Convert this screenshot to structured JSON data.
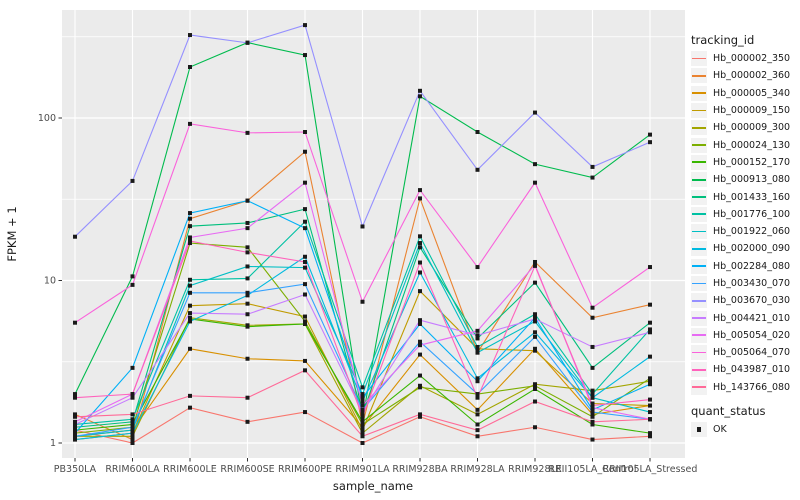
{
  "figure": {
    "background": "#FFFFFF",
    "panel_background": "#EBEBEB",
    "grid_color": "#FFFFFF",
    "point_color": "#1A1A1A",
    "axis_text_color": "#4D4D4D",
    "axis_title_color": "#1A1A1A"
  },
  "chart_data": {
    "type": "line",
    "title": "",
    "xlabel": "sample_name",
    "ylabel": "FPKM + 1",
    "y_scale": "log10",
    "y_ticks": [
      1,
      10,
      100
    ],
    "ylim": [
      0.82,
      470
    ],
    "grid": true,
    "legend_position": "right",
    "point_shape": "filled-square-black",
    "categories": [
      "PB350LA",
      "RRIM600LA",
      "RRIM600LE",
      "RRIM600SE",
      "RRIM600PE",
      "RRIM901LA",
      "RRIM928BA",
      "RRIM928LA",
      "RRIM928LE",
      "RRII105LA_Control",
      "RRII105LA_Stressed"
    ],
    "series": [
      {
        "name": "Hb_000002_350",
        "color": "#F8766D",
        "values": [
          1.2,
          1.0,
          1.65,
          1.35,
          1.55,
          1.0,
          1.45,
          1.1,
          1.25,
          1.05,
          1.1
        ]
      },
      {
        "name": "Hb_000002_360",
        "color": "#EA8331",
        "values": [
          1.5,
          1.05,
          24,
          31,
          62,
          1.3,
          32,
          3.6,
          13,
          5.9,
          7.1
        ]
      },
      {
        "name": "Hb_000005_340",
        "color": "#D89000",
        "values": [
          1.1,
          1.2,
          3.8,
          3.3,
          3.2,
          1.25,
          3.5,
          1.6,
          3.8,
          1.5,
          1.7
        ]
      },
      {
        "name": "Hb_000009_150",
        "color": "#C09B00",
        "values": [
          1.05,
          1.15,
          7.0,
          7.2,
          6.0,
          1.2,
          8.6,
          3.8,
          3.7,
          1.75,
          1.7
        ]
      },
      {
        "name": "Hb_000009_300",
        "color": "#A3A500",
        "values": [
          1.1,
          1.1,
          5.9,
          5.3,
          5.4,
          1.15,
          2.25,
          1.5,
          2.3,
          2.1,
          2.4
        ]
      },
      {
        "name": "Hb_000024_130",
        "color": "#7CAE00",
        "values": [
          1.15,
          1.25,
          17,
          16,
          5.6,
          1.3,
          2.2,
          2.0,
          2.25,
          1.45,
          2.5
        ]
      },
      {
        "name": "Hb_000152_170",
        "color": "#39B600",
        "values": [
          1.2,
          1.3,
          5.8,
          5.2,
          5.4,
          1.35,
          2.6,
          1.3,
          2.15,
          1.3,
          1.15
        ]
      },
      {
        "name": "Hb_000913_080",
        "color": "#00BB4E",
        "values": [
          2.0,
          10.6,
          206,
          291,
          244,
          1.4,
          136,
          82,
          52,
          43,
          79
        ]
      },
      {
        "name": "Hb_001433_160",
        "color": "#00BF7D",
        "values": [
          1.25,
          1.35,
          21.6,
          22.6,
          27.5,
          1.5,
          16,
          4.4,
          9.7,
          2.9,
          5.5
        ]
      },
      {
        "name": "Hb_001776_100",
        "color": "#00C1A3",
        "values": [
          1.3,
          1.4,
          10.1,
          10.3,
          23,
          2.2,
          18.7,
          3.9,
          6.2,
          2.0,
          5.0
        ]
      },
      {
        "name": "Hb_001922_060",
        "color": "#00BFC4",
        "values": [
          1.1,
          1.2,
          9.3,
          12.2,
          12,
          2.0,
          17,
          3.6,
          5.6,
          1.9,
          1.55
        ]
      },
      {
        "name": "Hb_002000_090",
        "color": "#00BAE0",
        "values": [
          1.05,
          1.15,
          5.6,
          8.1,
          14,
          1.8,
          11.2,
          2.5,
          4.8,
          1.9,
          3.4
        ]
      },
      {
        "name": "Hb_002284_080",
        "color": "#00B0F6",
        "values": [
          1.15,
          2.9,
          26,
          31,
          21,
          1.9,
          5.4,
          2.4,
          5.9,
          1.6,
          2.3
        ]
      },
      {
        "name": "Hb_003430_070",
        "color": "#35A2FF",
        "values": [
          1.1,
          1.25,
          8.4,
          8.4,
          9.5,
          1.6,
          4.2,
          2.0,
          4.5,
          1.55,
          1.4
        ]
      },
      {
        "name": "Hb_003670_030",
        "color": "#9590FF",
        "values": [
          18.6,
          41,
          324,
          290,
          373,
          21.5,
          147,
          48,
          108,
          50,
          71
        ]
      },
      {
        "name": "Hb_004421_010",
        "color": "#C77CFF",
        "values": [
          1.3,
          1.9,
          6.3,
          6.2,
          8.2,
          1.55,
          5.7,
          4.6,
          5.8,
          3.9,
          4.8
        ]
      },
      {
        "name": "Hb_005054_020",
        "color": "#E76BF3",
        "values": [
          1.35,
          2.0,
          18.4,
          21,
          40,
          1.7,
          4.0,
          4.9,
          12.5,
          1.65,
          1.4
        ]
      },
      {
        "name": "Hb_005064_070",
        "color": "#FA62DB",
        "values": [
          5.5,
          9.4,
          92,
          81,
          82,
          7.4,
          36,
          12.1,
          40,
          6.8,
          12.1
        ]
      },
      {
        "name": "Hb_043987_010",
        "color": "#FF62BC",
        "values": [
          1.9,
          2.0,
          17.5,
          14.9,
          13,
          1.45,
          12.9,
          1.9,
          12.3,
          1.7,
          1.85
        ]
      },
      {
        "name": "Hb_143766_080",
        "color": "#FF6A98",
        "values": [
          1.45,
          1.5,
          1.95,
          1.9,
          2.8,
          1.1,
          1.5,
          1.2,
          1.8,
          1.35,
          1.4
        ]
      }
    ]
  },
  "legend": {
    "tracking_title": "tracking_id",
    "quant_title": "quant_status",
    "quant_items": [
      {
        "label": "OK"
      }
    ]
  }
}
